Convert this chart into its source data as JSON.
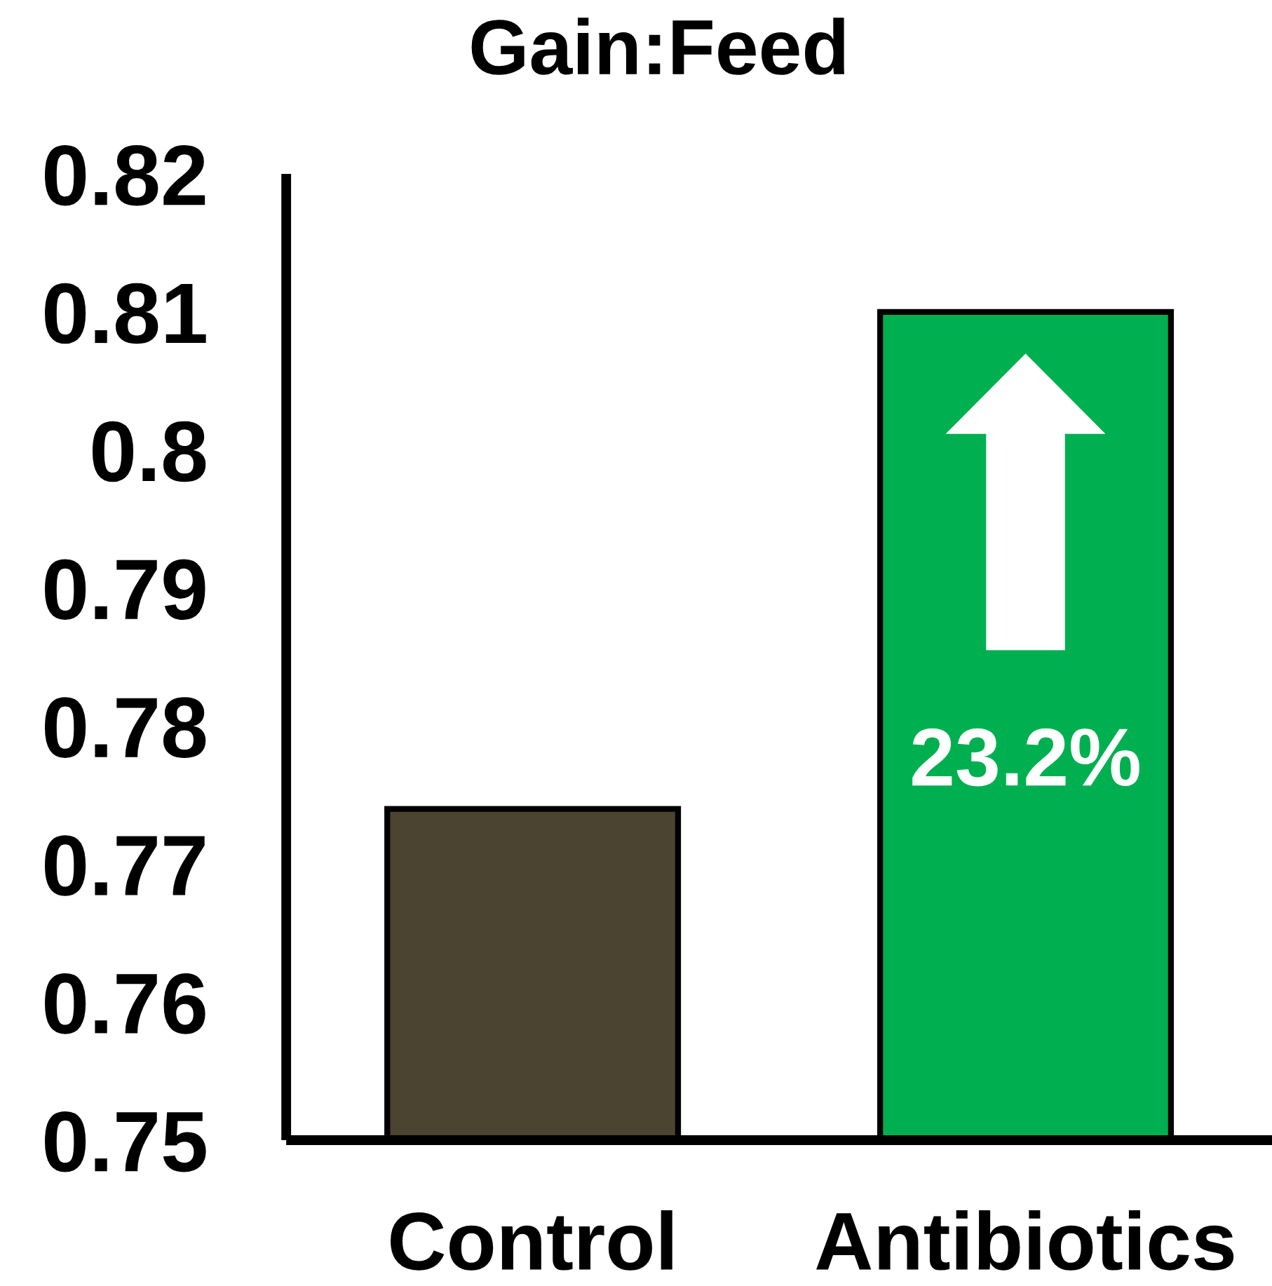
{
  "chart_data": {
    "type": "bar",
    "title": "Gain:Feed",
    "categories": [
      "Control",
      "Antibiotics"
    ],
    "values": [
      0.774,
      0.81
    ],
    "colors": [
      "#4a4430",
      "#00b050"
    ],
    "ylim": [
      0.75,
      0.82
    ],
    "yticks": [
      0.75,
      0.76,
      0.77,
      0.78,
      0.79,
      0.8,
      0.81,
      0.82
    ],
    "annotations": [
      "23.2%"
    ],
    "grid": false
  }
}
